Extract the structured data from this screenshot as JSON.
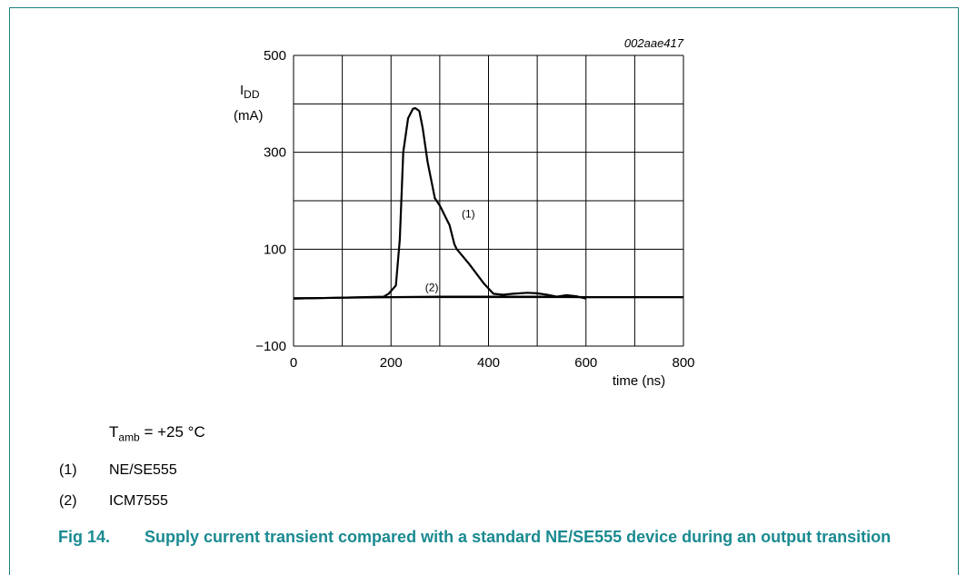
{
  "figure_id": "002aae417",
  "ylabel_main": "I",
  "ylabel_sub": "DD",
  "ylabel_unit": "(mA)",
  "xlabel": "time (ns)",
  "note": {
    "prefix": "T",
    "sub": "amb",
    "rest": " = +25 °C"
  },
  "legend": [
    {
      "num": "(1)",
      "label": "NE/SE555"
    },
    {
      "num": "(2)",
      "label": "ICM7555"
    }
  ],
  "caption": {
    "fignum": "Fig 14.",
    "text": "Supply current transient compared with a standard NE/SE555 device during an output transition"
  },
  "colors": {
    "frame": "#1f7f86",
    "caption": "#1a8a91",
    "line": "#000000"
  },
  "chart_data": {
    "type": "line",
    "xlim": [
      0,
      800
    ],
    "ylim": [
      -100,
      500
    ],
    "x_ticks": [
      0,
      200,
      400,
      600,
      800
    ],
    "x_gridlines": [
      0,
      100,
      200,
      300,
      400,
      500,
      600,
      700,
      800
    ],
    "y_ticks": [
      -100,
      100,
      300,
      500
    ],
    "y_tick_labels": [
      "−100",
      "100",
      "300",
      "500"
    ],
    "y_gridlines": [
      -100,
      0,
      100,
      200,
      300,
      400,
      500
    ],
    "grid": true,
    "series": [
      {
        "name": "(1)",
        "label_at": [
          345,
          165
        ],
        "x": [
          0,
          100,
          185,
          195,
          210,
          218,
          225,
          235,
          245,
          250,
          258,
          265,
          275,
          290,
          300,
          320,
          330,
          335,
          360,
          390,
          410,
          430,
          450,
          480,
          500,
          520,
          540,
          560,
          580,
          600
        ],
        "y": [
          -2,
          0,
          2,
          8,
          25,
          120,
          300,
          370,
          390,
          391,
          385,
          350,
          280,
          205,
          190,
          150,
          110,
          100,
          70,
          30,
          8,
          6,
          8,
          10,
          9,
          6,
          2,
          5,
          3,
          -2
        ]
      },
      {
        "name": "(2)",
        "label_at": [
          270,
          13
        ],
        "x": [
          0,
          100,
          200,
          300,
          400,
          500,
          600,
          700,
          800
        ],
        "y": [
          -2,
          0,
          1,
          2,
          2,
          2,
          1,
          1,
          1
        ]
      }
    ]
  }
}
